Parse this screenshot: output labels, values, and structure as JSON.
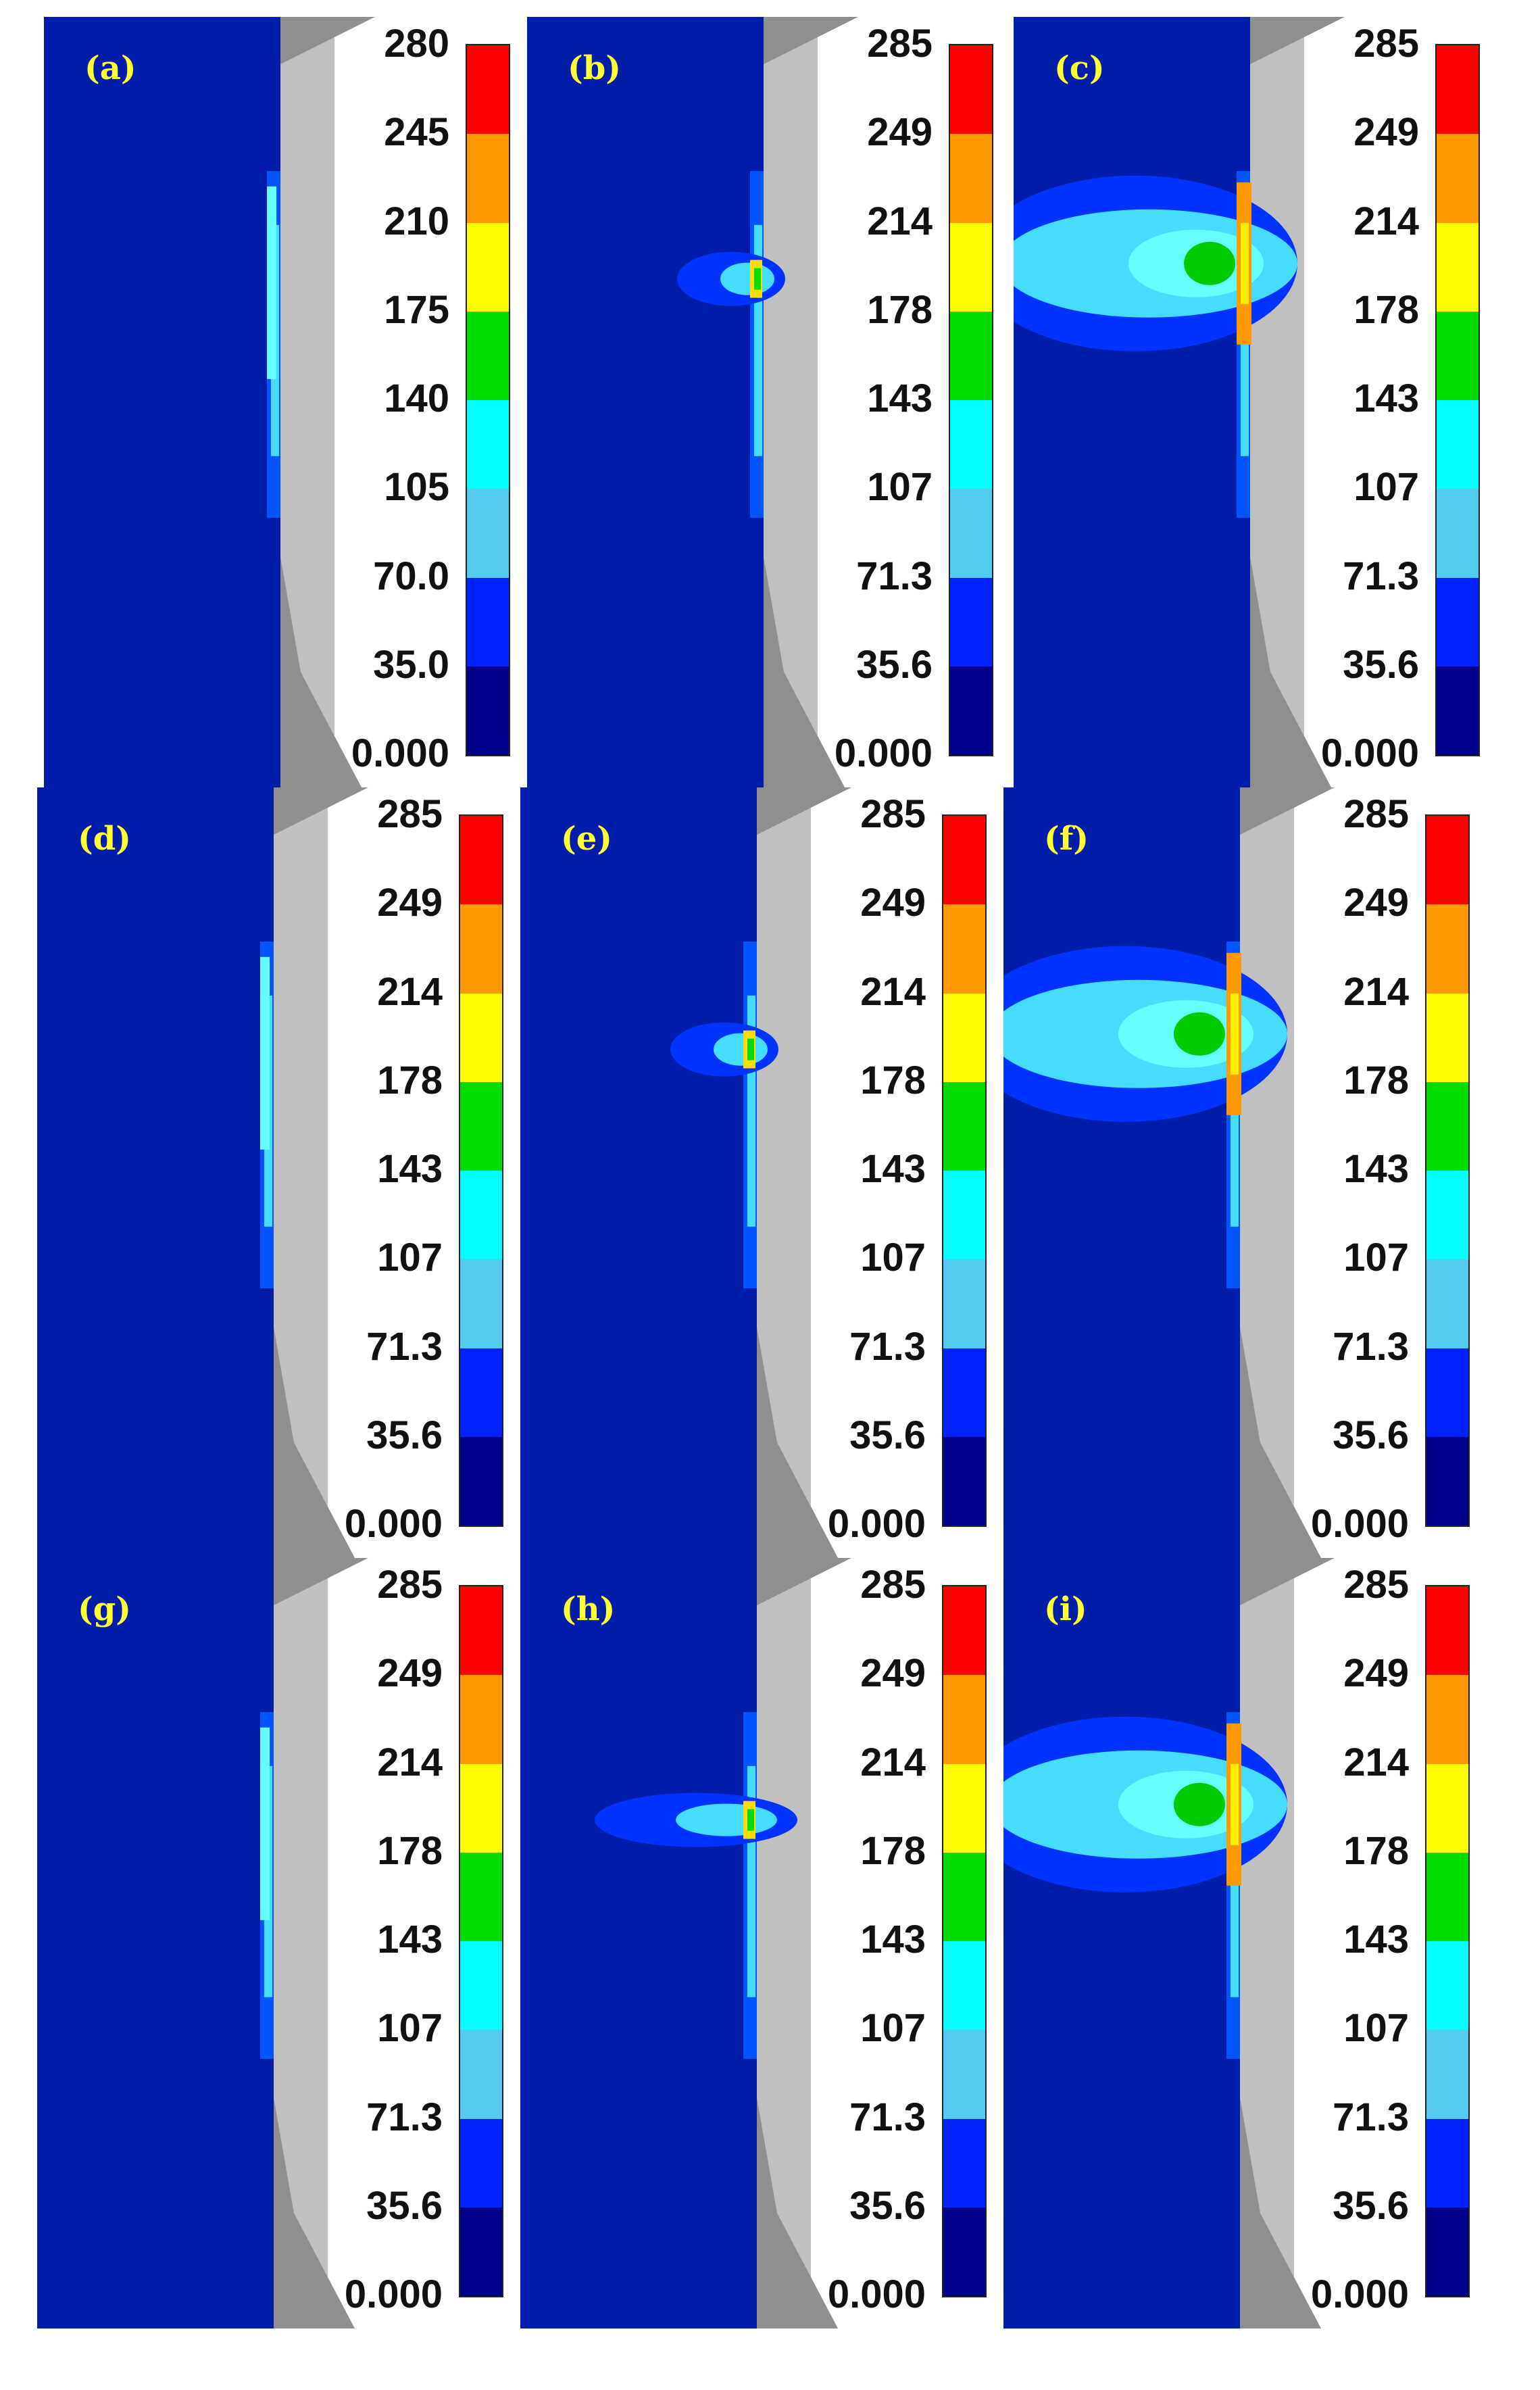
{
  "figure": {
    "panels": [
      {
        "letter": "(a)",
        "scale": [
          "280",
          "245",
          "210",
          "175",
          "140",
          "105",
          "70.0",
          "35.0",
          "0.000"
        ],
        "field": "minimal"
      },
      {
        "letter": "(b)",
        "scale": [
          "285",
          "249",
          "214",
          "178",
          "143",
          "107",
          "71.3",
          "35.6",
          "0.000"
        ],
        "field": "small-plume"
      },
      {
        "letter": "(c)",
        "scale": [
          "285",
          "249",
          "214",
          "178",
          "143",
          "107",
          "71.3",
          "35.6",
          "0.000"
        ],
        "field": "large-plume"
      },
      {
        "letter": "(d)",
        "scale": [
          "285",
          "249",
          "214",
          "178",
          "143",
          "107",
          "71.3",
          "35.6",
          "0.000"
        ],
        "field": "minimal"
      },
      {
        "letter": "(e)",
        "scale": [
          "285",
          "249",
          "214",
          "178",
          "143",
          "107",
          "71.3",
          "35.6",
          "0.000"
        ],
        "field": "small-plume"
      },
      {
        "letter": "(f)",
        "scale": [
          "285",
          "249",
          "214",
          "178",
          "143",
          "107",
          "71.3",
          "35.6",
          "0.000"
        ],
        "field": "large-plume"
      },
      {
        "letter": "(g)",
        "scale": [
          "285",
          "249",
          "214",
          "178",
          "143",
          "107",
          "71.3",
          "35.6",
          "0.000"
        ],
        "field": "minimal"
      },
      {
        "letter": "(h)",
        "scale": [
          "285",
          "249",
          "214",
          "178",
          "143",
          "107",
          "71.3",
          "35.6",
          "0.000"
        ],
        "field": "medium-plume"
      },
      {
        "letter": "(i)",
        "scale": [
          "285",
          "249",
          "214",
          "178",
          "143",
          "107",
          "71.3",
          "35.6",
          "0.000"
        ],
        "field": "large-plume"
      }
    ],
    "colorbar_colors": [
      "#ff0000",
      "#ff9900",
      "#ffff00",
      "#00dd00",
      "#00ffff",
      "#55ccee",
      "#0022ff",
      "#000088"
    ],
    "colors": {
      "field_background": "#001eaa",
      "tool_body": "#c0c0c0",
      "tool_dark": "#8f8f8f",
      "letter_color": "#ffff33"
    }
  }
}
